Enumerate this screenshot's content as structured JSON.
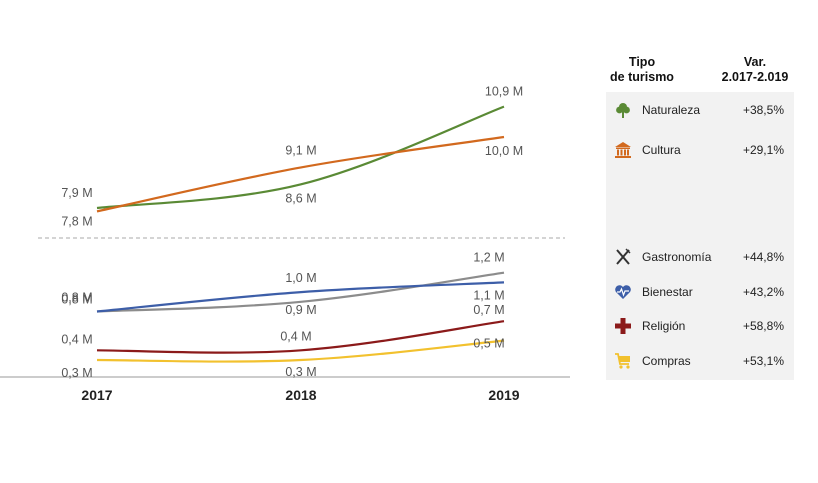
{
  "chart_data": {
    "type": "line",
    "categories": [
      "2017",
      "2018",
      "2019"
    ],
    "series": [
      {
        "name": "Naturaleza",
        "color": "#5a8a35",
        "values": [
          7.9,
          8.6,
          10.9
        ],
        "labels": [
          "7,9 M",
          "8,6 M",
          "10,9 M"
        ]
      },
      {
        "name": "Cultura",
        "color": "#d2691e",
        "values": [
          7.8,
          9.1,
          10.0
        ],
        "labels": [
          "7,8 M",
          "9,1 M",
          "10,0 M"
        ]
      },
      {
        "name": "Gastronomía",
        "color": "#8c8c8c",
        "values": [
          0.8,
          0.9,
          1.2
        ],
        "labels": [
          "0,8 M",
          "0,9 M",
          "1,2 M"
        ]
      },
      {
        "name": "Bienestar",
        "color": "#3d5ea8",
        "values": [
          0.8,
          1.0,
          1.1
        ],
        "labels": [
          "0,8 M",
          "1,0 M",
          "1,1 M"
        ]
      },
      {
        "name": "Religión",
        "color": "#8b1a1a",
        "values": [
          0.4,
          0.4,
          0.7
        ],
        "labels": [
          "0,4 M",
          "0,4 M",
          "0,7 M"
        ]
      },
      {
        "name": "Compras",
        "color": "#f2c12e",
        "values": [
          0.3,
          0.3,
          0.5
        ],
        "labels": [
          "0,3 M",
          "0,3 M",
          "0,5 M"
        ]
      }
    ],
    "axis_break": true
  },
  "table": {
    "header_type": "Tipo\nde turismo",
    "header_var": "Var.\n2.017-2.019",
    "rows": [
      {
        "icon": "tree-icon",
        "name": "Naturaleza",
        "var": "+38,5%",
        "color": "#5a8a35"
      },
      {
        "icon": "temple-icon",
        "name": "Cultura",
        "var": "+29,1%",
        "color": "#d2691e"
      },
      {
        "icon": "fork-knife-icon",
        "name": "Gastronomía",
        "var": "+44,8%",
        "color": "#333333"
      },
      {
        "icon": "heart-pulse-icon",
        "name": "Bienestar",
        "var": "+43,2%",
        "color": "#3d5ea8"
      },
      {
        "icon": "cross-icon",
        "name": "Religión",
        "var": "+58,8%",
        "color": "#8b1a1a"
      },
      {
        "icon": "cart-icon",
        "name": "Compras",
        "var": "+53,1%",
        "color": "#f2c12e"
      }
    ]
  }
}
